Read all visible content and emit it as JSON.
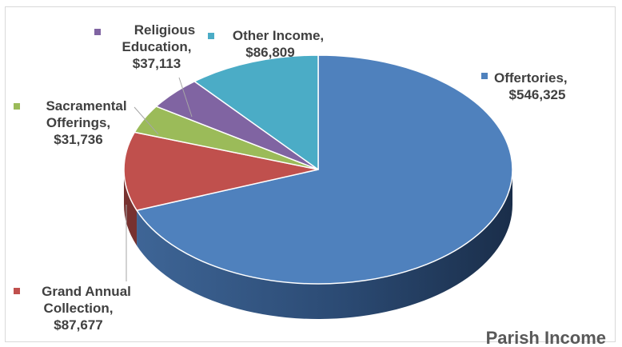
{
  "chart_data": {
    "type": "pie",
    "title": "Parish Income",
    "slices": [
      {
        "name": "Offertories",
        "value": 546325,
        "value_label": "$546,325",
        "label_lines": [
          "Offertories,",
          "$546,325"
        ],
        "color": "#4F81BD"
      },
      {
        "name": "Grand Annual Collection",
        "value": 87677,
        "value_label": "$87,677",
        "label_lines": [
          "Grand Annual",
          "Collection,",
          "$87,677"
        ],
        "color": "#C0504D"
      },
      {
        "name": "Sacramental Offerings",
        "value": 31736,
        "value_label": "$31,736",
        "label_lines": [
          "Sacramental",
          "Offerings,",
          "$31,736"
        ],
        "color": "#9BBB59"
      },
      {
        "name": "Religious Education",
        "value": 37113,
        "value_label": "$37,113",
        "label_lines": [
          "Religious",
          "Education,",
          "$37,113"
        ],
        "color": "#8064A2"
      },
      {
        "name": "Other Income",
        "value": 86809,
        "value_label": "$86,809",
        "label_lines": [
          "Other Income,",
          "$86,809"
        ],
        "color": "#4BACC6"
      }
    ],
    "legend": "none",
    "style": "3d-pie"
  }
}
